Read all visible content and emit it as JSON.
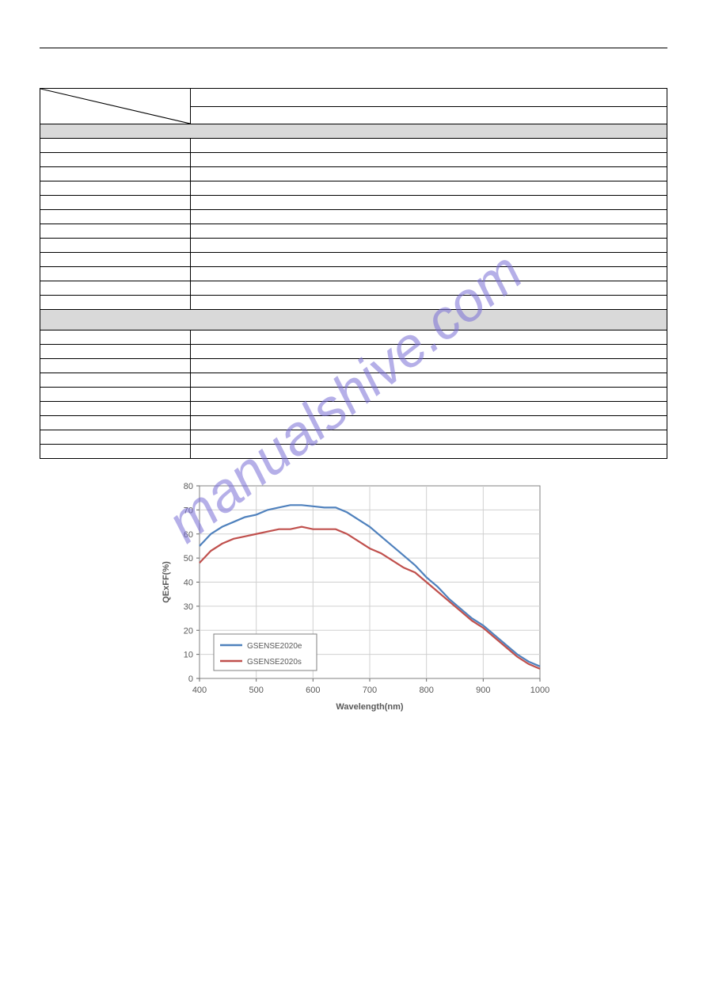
{
  "watermark_text": "manualshive.com",
  "watermark_color": "#7a6fd6",
  "table": {
    "diag_top": "",
    "diag_bottom": "",
    "right_stack": [
      "",
      ""
    ],
    "section1_header": "",
    "section1_rows": 12,
    "section2_header": "",
    "section2_rows": 9
  },
  "chart": {
    "title": "",
    "xlabel": "Wavelength(nm)",
    "ylabel": "QExFF(%)",
    "label_fontsize": 11,
    "background_color": "#ffffff",
    "plot_border_color": "#808080",
    "grid_color": "#d0d0d0",
    "xlim": [
      400,
      1000
    ],
    "ylim": [
      0,
      80
    ],
    "xtick_step": 100,
    "ytick_step": 10,
    "legend": {
      "position": "lower-left",
      "items": [
        {
          "label": "GSENSE2020e",
          "color": "#4f81bd"
        },
        {
          "label": "GSENSE2020s",
          "color": "#c0504d"
        }
      ],
      "fontsize": 10,
      "border_color": "#808080"
    },
    "series": [
      {
        "name": "GSENSE2020e",
        "color": "#4f81bd",
        "line_width": 2.2,
        "x": [
          400,
          420,
          440,
          460,
          480,
          500,
          520,
          540,
          560,
          580,
          600,
          620,
          640,
          660,
          680,
          700,
          720,
          740,
          760,
          780,
          800,
          820,
          840,
          860,
          880,
          900,
          920,
          940,
          960,
          980,
          1000
        ],
        "y": [
          55,
          60,
          63,
          65,
          67,
          68,
          70,
          71,
          72,
          72,
          71.5,
          71,
          71,
          69,
          66,
          63,
          59,
          55,
          51,
          47,
          42,
          38,
          33,
          29,
          25,
          22,
          18,
          14,
          10,
          7,
          5
        ]
      },
      {
        "name": "GSENSE2020s",
        "color": "#c0504d",
        "line_width": 2.2,
        "x": [
          400,
          420,
          440,
          460,
          480,
          500,
          520,
          540,
          560,
          580,
          600,
          620,
          640,
          660,
          680,
          700,
          720,
          740,
          760,
          780,
          800,
          820,
          840,
          860,
          880,
          900,
          920,
          940,
          960,
          980,
          1000
        ],
        "y": [
          48,
          53,
          56,
          58,
          59,
          60,
          61,
          62,
          62,
          63,
          62,
          62,
          62,
          60,
          57,
          54,
          52,
          49,
          46,
          44,
          40,
          36,
          32,
          28,
          24,
          21,
          17,
          13,
          9,
          6,
          4
        ]
      }
    ]
  }
}
